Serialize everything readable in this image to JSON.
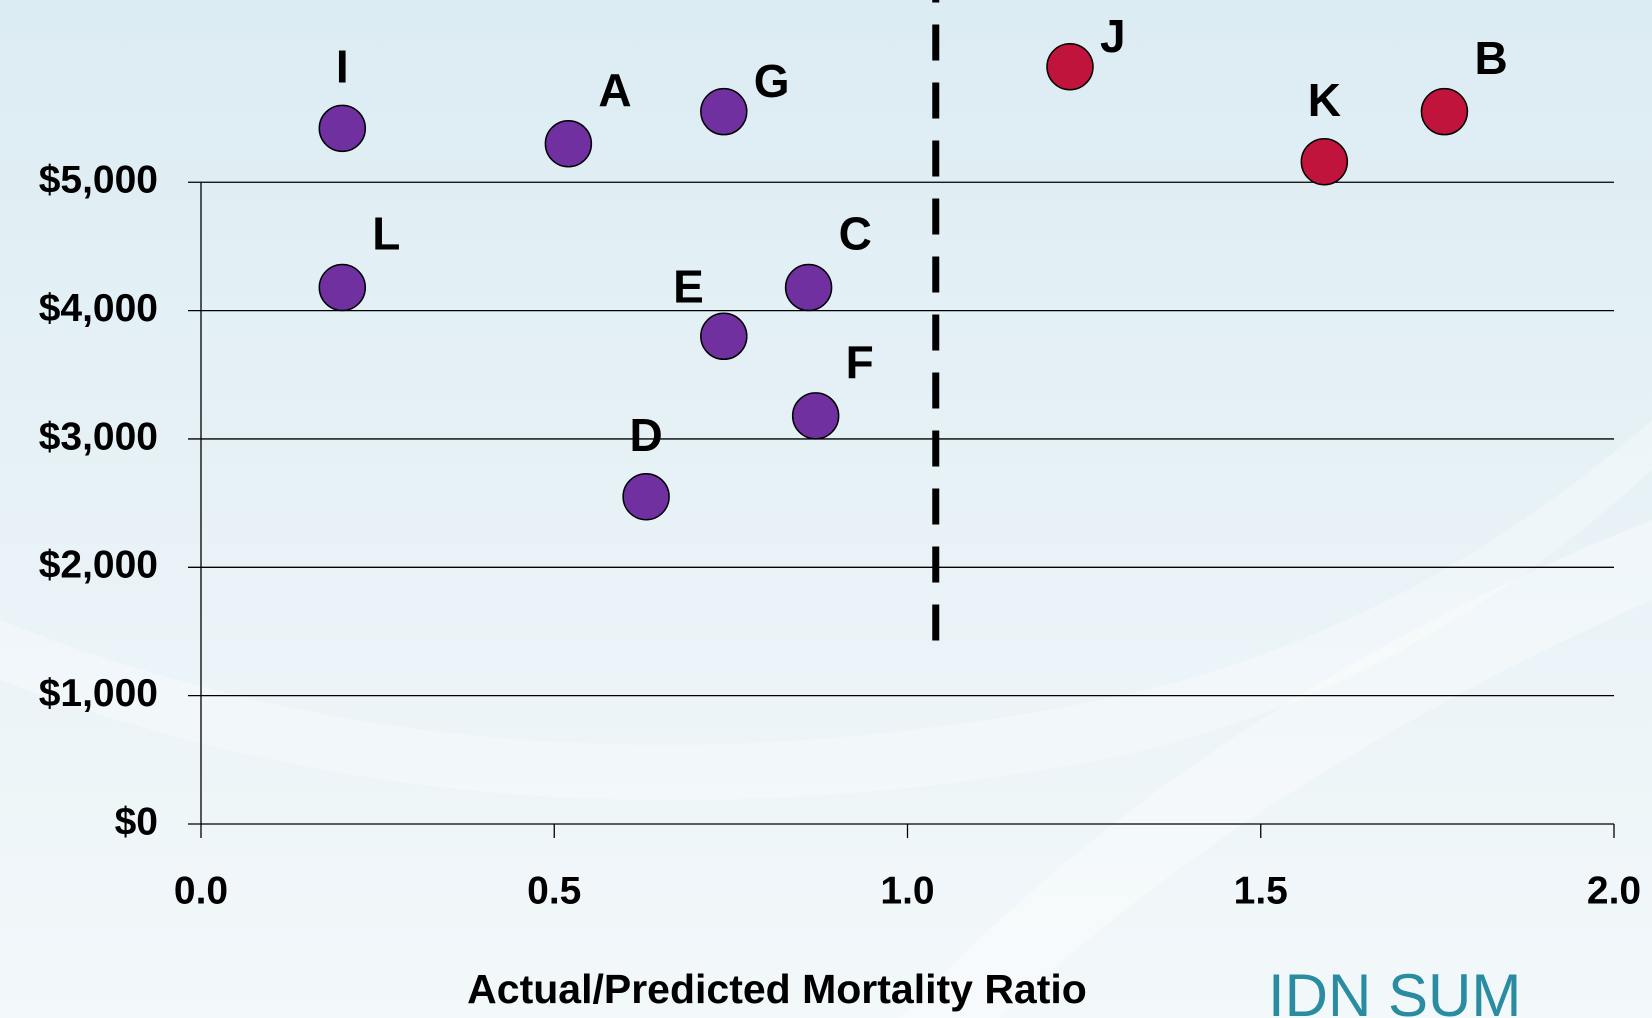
{
  "chart_data": {
    "type": "scatter",
    "x_label": "Actual/Predicted Mortality Ratio",
    "logo_text": "IDN SUM",
    "xlim": [
      0,
      2
    ],
    "xticks": [
      {
        "value": 0,
        "label": "0.0"
      },
      0.5,
      {
        "value": 1,
        "label": "1.0"
      },
      1.5,
      {
        "value": 2,
        "label": "2.0"
      }
    ],
    "ylim": [
      0,
      6420
    ],
    "yticks": [
      {
        "value": 0,
        "label": "$0"
      },
      {
        "value": 1000,
        "label": "$1,000"
      },
      {
        "value": 2000,
        "label": "$2,000"
      },
      {
        "value": 3000,
        "label": "$3,000"
      },
      {
        "value": 4000,
        "label": "$4,000"
      },
      {
        "value": 5000,
        "label": "$5,000"
      }
    ],
    "grid": true,
    "reference_line": {
      "x": 1.04,
      "y_range": [
        1430,
        6420
      ]
    },
    "points": [
      {
        "label": "I",
        "x": 0.2,
        "y": 5420,
        "color": "#7030a0",
        "label_position": "above"
      },
      {
        "label": "A",
        "x": 0.52,
        "y": 5300,
        "color": "#7030a0",
        "label_position": "above-right"
      },
      {
        "label": "G",
        "x": 0.74,
        "y": 5550,
        "color": "#7030a0",
        "label_position": "right"
      },
      {
        "label": "J",
        "x": 1.23,
        "y": 5900,
        "color": "#c0143c",
        "label_position": "right"
      },
      {
        "label": "K",
        "x": 1.59,
        "y": 5160,
        "color": "#c0143c",
        "label_position": "above"
      },
      {
        "label": "B",
        "x": 1.76,
        "y": 5550,
        "color": "#c0143c",
        "label_position": "above-right"
      },
      {
        "label": "L",
        "x": 0.2,
        "y": 4180,
        "color": "#7030a0",
        "label_position": "above-right"
      },
      {
        "label": "C",
        "x": 0.86,
        "y": 4180,
        "color": "#7030a0",
        "label_position": "above-right"
      },
      {
        "label": "E",
        "x": 0.74,
        "y": 3800,
        "color": "#7030a0",
        "label_position": "above-left"
      },
      {
        "label": "F",
        "x": 0.87,
        "y": 3180,
        "color": "#7030a0",
        "label_position": "above-right"
      },
      {
        "label": "D",
        "x": 0.63,
        "y": 2550,
        "color": "#7030a0",
        "label_position": "above"
      }
    ]
  }
}
